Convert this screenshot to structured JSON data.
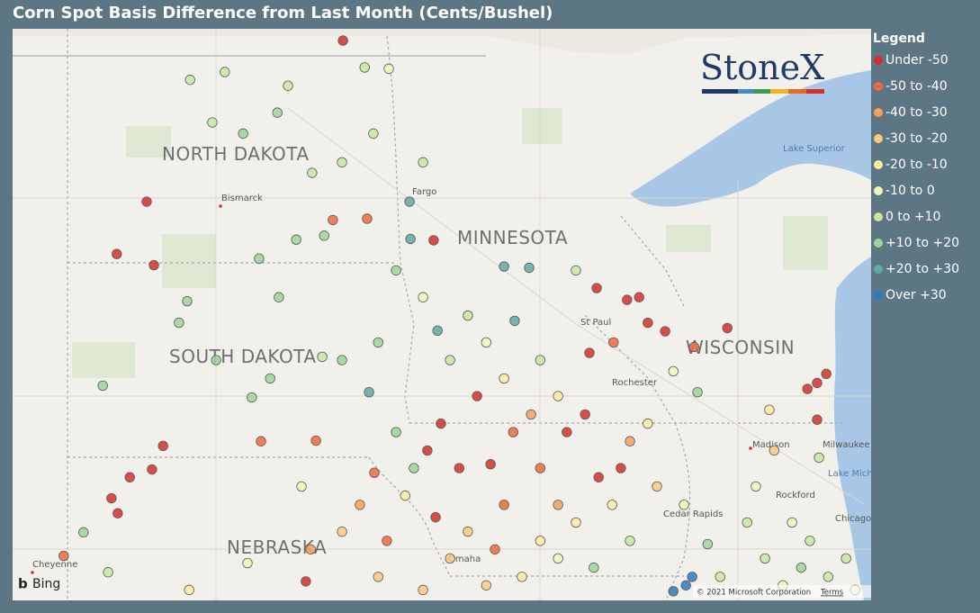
{
  "header": {
    "title": "Corn Spot Basis Difference from Last Month (Cents/Bushel)"
  },
  "legend": {
    "title": "Legend",
    "items": [
      {
        "label": "Under -50",
        "color": "#d62f2a"
      },
      {
        "label": "-50 to -40",
        "color": "#ef6a3b"
      },
      {
        "label": "-40 to -30",
        "color": "#f5a05a"
      },
      {
        "label": "-30 to -20",
        "color": "#fcc982"
      },
      {
        "label": "-20 to -10",
        "color": "#fdeca0"
      },
      {
        "label": "-10 to 0",
        "color": "#eef6b8"
      },
      {
        "label": "0 to +10",
        "color": "#c8e6a2"
      },
      {
        "label": "+10 to +20",
        "color": "#9ed49b"
      },
      {
        "label": "+20 to +30",
        "color": "#5ea9a6"
      },
      {
        "label": "Over +30",
        "color": "#2c7bbf"
      }
    ]
  },
  "map_labels": {
    "north_dakota": "NORTH DAKOTA",
    "south_dakota": "SOUTH DAKOTA",
    "minnesota": "MINNESOTA",
    "wisconsin": "WISCONSIN",
    "nebraska": "NEBRASKA",
    "bismarck": "Bismarck",
    "fargo": "Fargo",
    "st_paul": "St Paul",
    "lake_superior": "Lake Superior",
    "madison": "Madison",
    "milwaukee": "Milwaukee",
    "lake_michigan": "Lake Mich",
    "rockford": "Rockford",
    "chicago": "Chicago",
    "cedar_rapids": "Cedar Rapids",
    "omaha": "Omaha",
    "cheyenne": "Cheyenne",
    "rochester": "Rochester"
  },
  "logo": {
    "brand": "StoneX"
  },
  "attribution": {
    "bing": "Bing",
    "copyright": "© 2021 Microsoft Corporation",
    "terms": "Terms"
  },
  "points": [
    [
      -98.24,
      49.2,
      0
    ],
    [
      -102.31,
      46.74,
      0
    ],
    [
      -102.93,
      45.94,
      0
    ],
    [
      -102.16,
      45.77,
      0
    ],
    [
      -101.97,
      43.01,
      0
    ],
    [
      -102.2,
      42.65,
      0
    ],
    [
      -102.66,
      42.53,
      0
    ],
    [
      -103.04,
      42.21,
      0
    ],
    [
      -102.91,
      41.98,
      0
    ],
    [
      -104.03,
      41.33,
      1
    ],
    [
      -103.62,
      41.69,
      7
    ],
    [
      -103.22,
      43.93,
      7
    ],
    [
      -101.64,
      44.89,
      7
    ],
    [
      -101.47,
      45.22,
      7
    ],
    [
      -101.41,
      48.6,
      6
    ],
    [
      -100.95,
      47.95,
      6
    ],
    [
      -100.31,
      47.78,
      7
    ],
    [
      -99.6,
      48.1,
      7
    ],
    [
      -98.88,
      47.18,
      6
    ],
    [
      -99.21,
      46.16,
      7
    ],
    [
      -98.63,
      46.22,
      7
    ],
    [
      -99.98,
      45.87,
      7
    ],
    [
      -99.57,
      45.28,
      7
    ],
    [
      -100.13,
      43.75,
      7
    ],
    [
      -99.94,
      43.08,
      1
    ],
    [
      -98.8,
      43.09,
      1
    ],
    [
      -98.67,
      44.37,
      6
    ],
    [
      -97.79,
      48.79,
      6
    ],
    [
      -97.29,
      48.77,
      5
    ],
    [
      -97.61,
      47.78,
      6
    ],
    [
      -96.86,
      46.74,
      8
    ],
    [
      -96.84,
      46.17,
      8
    ],
    [
      -97.74,
      46.48,
      1
    ],
    [
      -98.45,
      46.46,
      1
    ],
    [
      -96.36,
      46.15,
      0
    ],
    [
      -94.9,
      45.75,
      8
    ],
    [
      -94.38,
      45.73,
      8
    ],
    [
      -94.68,
      44.92,
      8
    ],
    [
      -96.28,
      44.77,
      8
    ],
    [
      -97.7,
      43.83,
      8
    ],
    [
      -92.98,
      45.42,
      0
    ],
    [
      -92.35,
      45.24,
      0
    ],
    [
      -92.1,
      45.28,
      0
    ],
    [
      -91.92,
      44.89,
      0
    ],
    [
      -90.27,
      44.81,
      0
    ],
    [
      -91.56,
      44.76,
      0
    ],
    [
      -92.63,
      44.59,
      1
    ],
    [
      -93.13,
      44.43,
      0
    ],
    [
      -88.22,
      44.11,
      0
    ],
    [
      -88.41,
      43.97,
      0
    ],
    [
      -88.61,
      43.88,
      0
    ],
    [
      -88.41,
      43.41,
      0
    ],
    [
      -90.96,
      44.52,
      1
    ],
    [
      -90.89,
      43.83,
      7
    ],
    [
      -91.39,
      44.15,
      5
    ],
    [
      -89.3,
      42.94,
      3
    ],
    [
      -89.4,
      43.56,
      4
    ],
    [
      -88.37,
      42.83,
      6
    ],
    [
      -91.13,
      40.88,
      9
    ],
    [
      -91.0,
      41.01,
      9
    ],
    [
      -91.39,
      40.79,
      9
    ],
    [
      -90.68,
      41.51,
      7
    ],
    [
      -89.86,
      41.84,
      6
    ],
    [
      -89.49,
      41.29,
      6
    ],
    [
      -88.74,
      41.15,
      7
    ],
    [
      -88.18,
      41.01,
      6
    ],
    [
      -87.62,
      40.81,
      5
    ],
    [
      -92.29,
      41.56,
      6
    ],
    [
      -93.04,
      41.15,
      7
    ],
    [
      -93.78,
      41.29,
      5
    ],
    [
      -94.53,
      41.01,
      4
    ],
    [
      -95.27,
      40.88,
      3
    ],
    [
      -96.58,
      40.81,
      3
    ],
    [
      -97.33,
      41.56,
      1
    ],
    [
      -96.32,
      41.92,
      0
    ],
    [
      -99.01,
      40.94,
      0
    ],
    [
      -98.91,
      41.43,
      2
    ],
    [
      -97.89,
      42.11,
      2
    ],
    [
      -96.95,
      42.25,
      4
    ],
    [
      -96.49,
      42.94,
      0
    ],
    [
      -96.21,
      43.35,
      0
    ],
    [
      -95.83,
      42.67,
      0
    ],
    [
      -95.46,
      43.77,
      0
    ],
    [
      -95.18,
      42.73,
      0
    ],
    [
      -94.71,
      43.22,
      1
    ],
    [
      -94.15,
      42.67,
      1
    ],
    [
      -94.34,
      43.49,
      2
    ],
    [
      -93.6,
      43.22,
      0
    ],
    [
      -93.22,
      43.49,
      0
    ],
    [
      -92.94,
      42.53,
      0
    ],
    [
      -92.48,
      42.67,
      0
    ],
    [
      -92.29,
      43.08,
      2
    ],
    [
      -91.92,
      43.35,
      4
    ],
    [
      -91.73,
      42.39,
      3
    ],
    [
      -91.17,
      42.11,
      5
    ],
    [
      -93.78,
      42.11,
      2
    ],
    [
      -94.9,
      42.11,
      1
    ],
    [
      -95.65,
      41.7,
      3
    ],
    [
      -97.14,
      43.22,
      7
    ],
    [
      -96.77,
      42.67,
      7
    ],
    [
      -96.02,
      44.32,
      6
    ],
    [
      -95.27,
      44.59,
      5
    ],
    [
      -94.15,
      44.32,
      6
    ],
    [
      -93.78,
      43.77,
      4
    ],
    [
      -94.9,
      44.04,
      4
    ],
    [
      -96.58,
      45.28,
      5
    ],
    [
      -95.65,
      45.0,
      6
    ],
    [
      -97.14,
      45.69,
      7
    ],
    [
      -93.41,
      45.69,
      6
    ],
    [
      -96.58,
      47.34,
      6
    ],
    [
      -98.26,
      44.32,
      7
    ],
    [
      -97.51,
      44.59,
      7
    ],
    [
      -100.87,
      44.32,
      7
    ],
    [
      -100.69,
      48.72,
      6
    ],
    [
      -99.38,
      48.51,
      6
    ],
    [
      -98.26,
      47.34,
      6
    ],
    [
      -99.75,
      44.04,
      7
    ],
    [
      -89.68,
      42.39,
      5
    ],
    [
      -88.93,
      41.84,
      5
    ],
    [
      -88.56,
      41.56,
      6
    ],
    [
      -90.42,
      41.01,
      6
    ],
    [
      -89.12,
      40.88,
      5
    ],
    [
      -87.81,
      41.29,
      6
    ],
    [
      -93.41,
      41.84,
      4
    ],
    [
      -94.15,
      41.56,
      4
    ],
    [
      -92.66,
      42.11,
      4
    ],
    [
      -95.09,
      41.43,
      1
    ],
    [
      -96.02,
      41.29,
      3
    ],
    [
      -97.51,
      41.01,
      3
    ],
    [
      -98.26,
      41.7,
      3
    ],
    [
      -103.11,
      41.08,
      6
    ],
    [
      -101.43,
      40.81,
      4
    ],
    [
      -100.22,
      41.22,
      5
    ],
    [
      -99.1,
      42.39,
      5
    ],
    [
      -97.59,
      42.6,
      1
    ]
  ]
}
